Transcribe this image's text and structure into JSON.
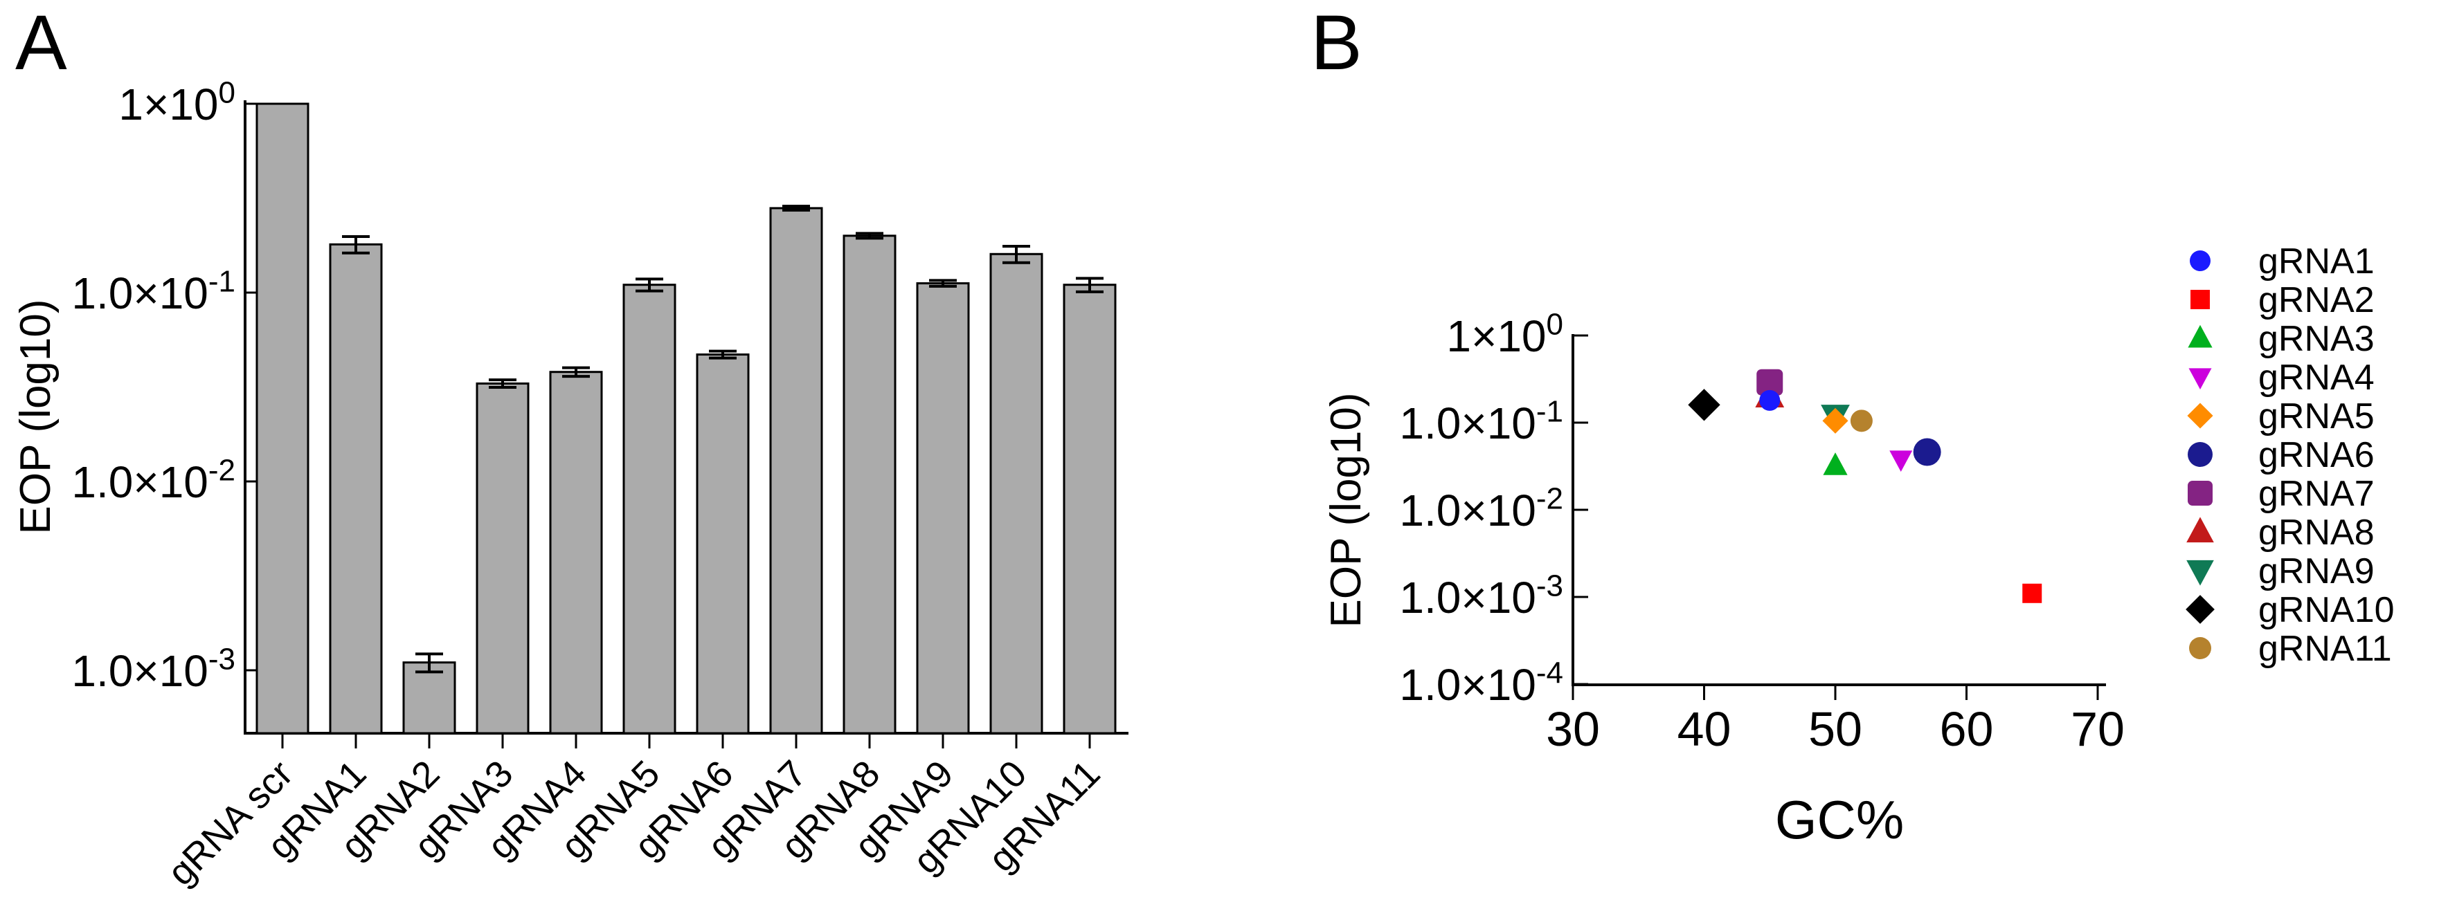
{
  "figure": {
    "background": "#ffffff",
    "bar_fill": "#ababab",
    "axis_color": "#000000"
  },
  "chart_data": [
    {
      "type": "bar",
      "panel_label": "A",
      "ylabel": "EOP (log10)",
      "xlabel": "",
      "yscale": "log",
      "ylim": [
        0.00046,
        1
      ],
      "grid": false,
      "bar_color": "#ababab",
      "bar_stroke": "#000000",
      "yticks": [
        {
          "label_base": "1×10",
          "label_exp": "0",
          "value": 1
        },
        {
          "label_base": "1.0×10",
          "label_exp": "-1",
          "value": 0.1
        },
        {
          "label_base": "1.0×10",
          "label_exp": "-2",
          "value": 0.01
        },
        {
          "label_base": "1.0×10",
          "label_exp": "-3",
          "value": 0.001
        }
      ],
      "categories": [
        "gRNA scr",
        "gRNA1",
        "gRNA2",
        "gRNA3",
        "gRNA4",
        "gRNA5",
        "gRNA6",
        "gRNA7",
        "gRNA8",
        "gRNA9",
        "gRNA10",
        "gRNA11"
      ],
      "values": [
        1.0,
        0.18,
        0.0011,
        0.033,
        0.038,
        0.11,
        0.047,
        0.28,
        0.2,
        0.112,
        0.16,
        0.11
      ],
      "errors": [
        0,
        0.018,
        0.00012,
        0.0015,
        0.002,
        0.008,
        0.002,
        0.007,
        0.006,
        0.004,
        0.016,
        0.009
      ]
    },
    {
      "type": "scatter",
      "panel_label": "B",
      "ylabel": "EOP (log10)",
      "xlabel": "GC%",
      "yscale": "log",
      "ylim": [
        0.0001,
        1
      ],
      "xlim": [
        30,
        70
      ],
      "grid": false,
      "legend_position": "right",
      "xticks": [
        30,
        40,
        50,
        60,
        70
      ],
      "yticks": [
        {
          "label_base": "1×10",
          "label_exp": "0",
          "value": 1
        },
        {
          "label_base": "1.0×10",
          "label_exp": "-1",
          "value": 0.1
        },
        {
          "label_base": "1.0×10",
          "label_exp": "-2",
          "value": 0.01
        },
        {
          "label_base": "1.0×10",
          "label_exp": "-3",
          "value": 0.001
        },
        {
          "label_base": "1.0×10",
          "label_exp": "-4",
          "value": 0.0001
        }
      ],
      "series": [
        {
          "name": "gRNA1",
          "marker": "circle",
          "color": "#1a1aff",
          "size": 30,
          "x": 45,
          "y": 0.18,
          "z": 3
        },
        {
          "name": "gRNA2",
          "marker": "square",
          "color": "#ff0000",
          "size": 28,
          "x": 65,
          "y": 0.0011,
          "z": 2
        },
        {
          "name": "gRNA3",
          "marker": "triangle-up",
          "color": "#00b01e",
          "size": 32,
          "x": 50,
          "y": 0.032,
          "z": 2
        },
        {
          "name": "gRNA4",
          "marker": "triangle-down",
          "color": "#cc00dd",
          "size": 30,
          "x": 55,
          "y": 0.038,
          "z": 2
        },
        {
          "name": "gRNA5",
          "marker": "diamond",
          "color": "#ff8c00",
          "size": 32,
          "x": 50,
          "y": 0.105,
          "z": 3
        },
        {
          "name": "gRNA6",
          "marker": "circle",
          "color": "#1b1b8f",
          "size": 40,
          "x": 57,
          "y": 0.046,
          "z": 2
        },
        {
          "name": "gRNA7",
          "marker": "square-round",
          "color": "#842383",
          "size": 38,
          "x": 45,
          "y": 0.29,
          "z": 2
        },
        {
          "name": "gRNA8",
          "marker": "triangle-up",
          "color": "#c21a1a",
          "size": 38,
          "x": 45,
          "y": 0.2,
          "z": 1
        },
        {
          "name": "gRNA9",
          "marker": "triangle-down",
          "color": "#0f7a55",
          "size": 38,
          "x": 50,
          "y": 0.12,
          "z": 1
        },
        {
          "name": "gRNA10",
          "marker": "diamond",
          "color": "#000000",
          "size": 40,
          "x": 40,
          "y": 0.16,
          "z": 2
        },
        {
          "name": "gRNA11",
          "marker": "circle",
          "color": "#b5822d",
          "size": 32,
          "x": 52,
          "y": 0.105,
          "z": 2
        }
      ]
    }
  ]
}
